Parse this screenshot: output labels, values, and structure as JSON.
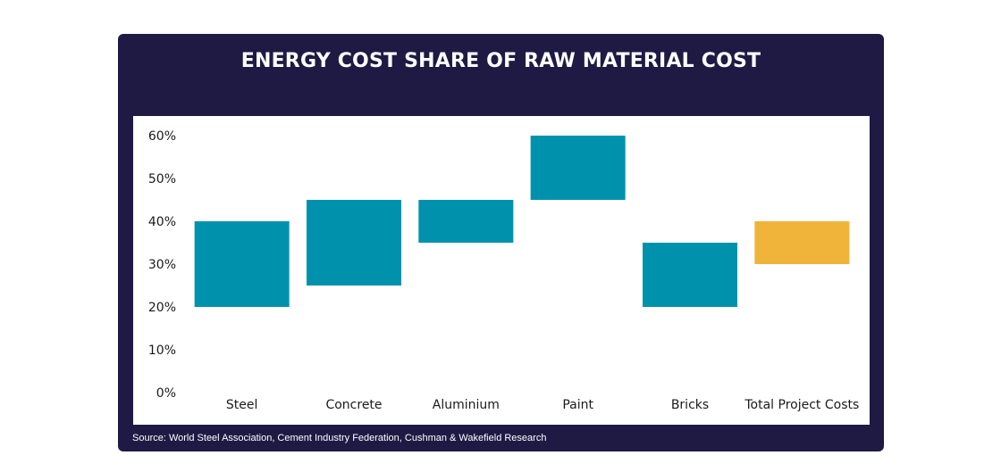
{
  "colors": {
    "background": "#1f1a44",
    "bar": "#0092ad",
    "highlight": "#f0b43a"
  },
  "chart_data": {
    "type": "bar",
    "subtype": "floating-range",
    "title": "ENERGY COST SHARE OF RAW MATERIAL COST",
    "categories": [
      "Steel",
      "Concrete",
      "Aluminium",
      "Paint",
      "Bricks",
      "Total Project Costs"
    ],
    "ranges": [
      [
        20,
        40
      ],
      [
        25,
        45
      ],
      [
        35,
        45
      ],
      [
        45,
        60
      ],
      [
        20,
        35
      ],
      [
        30,
        40
      ]
    ],
    "highlight_index": 5,
    "yticks": [
      "0%",
      "10%",
      "20%",
      "30%",
      "40%",
      "50%",
      "60%"
    ],
    "ylim": [
      0,
      60
    ],
    "grid": false,
    "legend": "none"
  },
  "source": "Source: World Steel Association, Cement Industry Federation, Cushman & Wakefield Research"
}
